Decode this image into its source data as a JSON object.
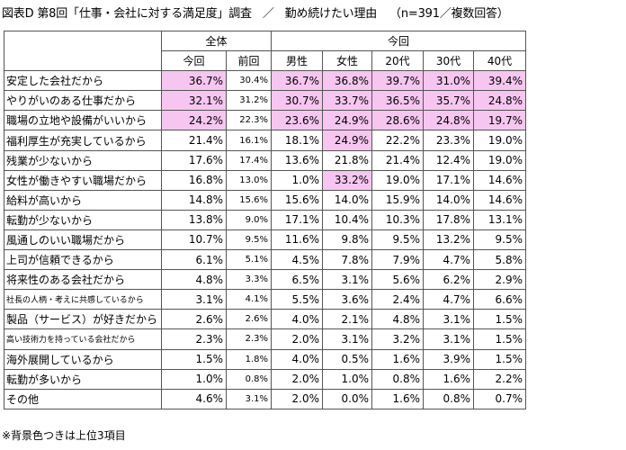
{
  "title": {
    "main": "図表D 第8回「仕事・会社に対する満足度」調査",
    "separator": "／",
    "subject": "勤め続けたい理由",
    "n_note": "（n=391／複数回答）"
  },
  "table": {
    "group_headers": [
      "全体",
      "今回"
    ],
    "columns": [
      "今回",
      "前回",
      "男性",
      "女性",
      "20代",
      "30代",
      "40代"
    ],
    "rows": [
      {
        "label": "安定した会社だから",
        "values": [
          "36.7%",
          "30.4%",
          "36.7%",
          "36.8%",
          "39.7%",
          "31.0%",
          "39.4%"
        ],
        "hl": [
          1,
          0,
          1,
          1,
          1,
          1,
          1
        ]
      },
      {
        "label": "やりがいのある仕事だから",
        "values": [
          "32.1%",
          "31.2%",
          "30.7%",
          "33.7%",
          "36.5%",
          "35.7%",
          "24.8%"
        ],
        "hl": [
          1,
          0,
          1,
          1,
          1,
          1,
          1
        ]
      },
      {
        "label": "職場の立地や設備がいいから",
        "values": [
          "24.2%",
          "22.3%",
          "23.6%",
          "24.9%",
          "28.6%",
          "24.8%",
          "19.7%"
        ],
        "hl": [
          1,
          0,
          1,
          1,
          1,
          1,
          1
        ]
      },
      {
        "label": "福利厚生が充実しているから",
        "values": [
          "21.4%",
          "16.1%",
          "18.1%",
          "24.9%",
          "22.2%",
          "23.3%",
          "19.0%"
        ],
        "hl": [
          0,
          0,
          0,
          1,
          0,
          0,
          0
        ]
      },
      {
        "label": "残業が少ないから",
        "values": [
          "17.6%",
          "17.4%",
          "13.6%",
          "21.8%",
          "21.4%",
          "12.4%",
          "19.0%"
        ],
        "hl": [
          0,
          0,
          0,
          0,
          0,
          0,
          0
        ]
      },
      {
        "label": "女性が働きやすい職場だから",
        "values": [
          "16.8%",
          "13.0%",
          "1.0%",
          "33.2%",
          "19.0%",
          "17.1%",
          "14.6%"
        ],
        "hl": [
          0,
          0,
          0,
          1,
          0,
          0,
          0
        ]
      },
      {
        "label": "給料が高いから",
        "values": [
          "14.8%",
          "15.6%",
          "15.6%",
          "14.0%",
          "15.9%",
          "14.0%",
          "14.6%"
        ],
        "hl": [
          0,
          0,
          0,
          0,
          0,
          0,
          0
        ]
      },
      {
        "label": "転勤が少ないから",
        "values": [
          "13.8%",
          "9.0%",
          "17.1%",
          "10.4%",
          "10.3%",
          "17.8%",
          "13.1%"
        ],
        "hl": [
          0,
          0,
          0,
          0,
          0,
          0,
          0
        ]
      },
      {
        "label": "風通しのいい職場だから",
        "values": [
          "10.7%",
          "9.5%",
          "11.6%",
          "9.8%",
          "9.5%",
          "13.2%",
          "9.5%"
        ],
        "hl": [
          0,
          0,
          0,
          0,
          0,
          0,
          0
        ]
      },
      {
        "label": "上司が信頼できるから",
        "values": [
          "6.1%",
          "5.1%",
          "4.5%",
          "7.8%",
          "7.9%",
          "4.7%",
          "5.8%"
        ],
        "hl": [
          0,
          0,
          0,
          0,
          0,
          0,
          0
        ]
      },
      {
        "label": "将来性のある会社だから",
        "values": [
          "4.8%",
          "3.3%",
          "6.5%",
          "3.1%",
          "5.6%",
          "6.2%",
          "2.9%"
        ],
        "hl": [
          0,
          0,
          0,
          0,
          0,
          0,
          0
        ]
      },
      {
        "label": "社長の人柄・考えに共感しているから",
        "values": [
          "3.1%",
          "4.1%",
          "5.5%",
          "3.6%",
          "2.4%",
          "4.7%",
          "6.6%"
        ],
        "hl": [
          0,
          0,
          0,
          0,
          0,
          0,
          0
        ],
        "small": true
      },
      {
        "label": "製品（サービス）が好きだから",
        "values": [
          "2.6%",
          "2.6%",
          "4.0%",
          "2.1%",
          "4.8%",
          "3.1%",
          "1.5%"
        ],
        "hl": [
          0,
          0,
          0,
          0,
          0,
          0,
          0
        ]
      },
      {
        "label": "高い技術力を持っている会社だから",
        "values": [
          "2.3%",
          "2.3%",
          "2.0%",
          "3.1%",
          "3.2%",
          "3.1%",
          "1.5%"
        ],
        "hl": [
          0,
          0,
          0,
          0,
          0,
          0,
          0
        ],
        "small": true
      },
      {
        "label": "海外展開しているから",
        "values": [
          "1.5%",
          "1.8%",
          "4.0%",
          "0.5%",
          "1.6%",
          "3.9%",
          "1.5%"
        ],
        "hl": [
          0,
          0,
          0,
          0,
          0,
          0,
          0
        ]
      },
      {
        "label": "転勤が多いから",
        "values": [
          "1.0%",
          "0.8%",
          "2.0%",
          "1.0%",
          "0.8%",
          "1.6%",
          "2.2%"
        ],
        "hl": [
          0,
          0,
          0,
          0,
          0,
          0,
          0
        ]
      },
      {
        "label": "その他",
        "values": [
          "4.6%",
          "3.1%",
          "2.0%",
          "0.0%",
          "1.6%",
          "0.8%",
          "0.7%"
        ],
        "hl": [
          0,
          0,
          0,
          0,
          0,
          0,
          0
        ]
      }
    ]
  },
  "footnote": "※背景色つきは上位3項目",
  "colors": {
    "highlight": "#f6c6f0",
    "border": "#555555"
  }
}
